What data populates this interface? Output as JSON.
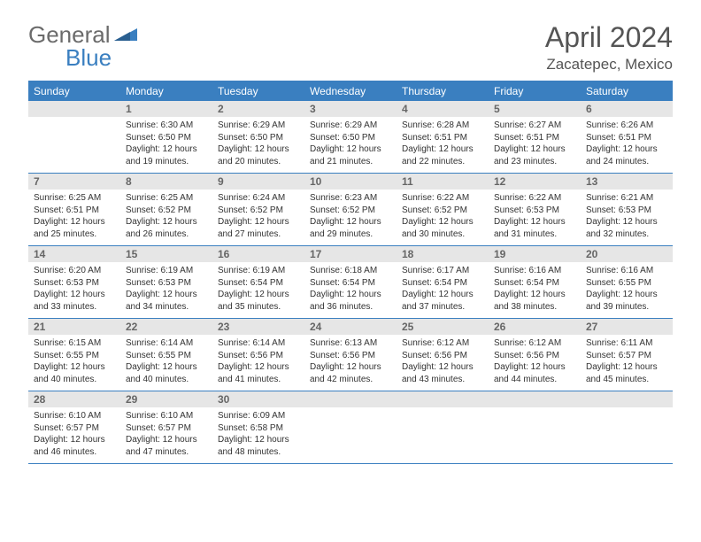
{
  "brand": {
    "general": "General",
    "blue": "Blue"
  },
  "title": "April 2024",
  "location": "Zacatepec, Mexico",
  "colors": {
    "accent": "#3a7fc0",
    "daynum_bg": "#e6e6e6",
    "text_dark": "#333333",
    "text_muted": "#666666",
    "title_color": "#555555",
    "background": "#ffffff"
  },
  "typography": {
    "title_fontsize": 32,
    "location_fontsize": 17,
    "weekday_fontsize": 12,
    "daynum_fontsize": 12,
    "details_fontsize": 10,
    "logo_fontsize": 26
  },
  "weekdays": [
    "Sunday",
    "Monday",
    "Tuesday",
    "Wednesday",
    "Thursday",
    "Friday",
    "Saturday"
  ],
  "weeks": [
    [
      {
        "num": "",
        "sunrise": "",
        "sunset": "",
        "daylight": ""
      },
      {
        "num": "1",
        "sunrise": "Sunrise: 6:30 AM",
        "sunset": "Sunset: 6:50 PM",
        "daylight": "Daylight: 12 hours and 19 minutes."
      },
      {
        "num": "2",
        "sunrise": "Sunrise: 6:29 AM",
        "sunset": "Sunset: 6:50 PM",
        "daylight": "Daylight: 12 hours and 20 minutes."
      },
      {
        "num": "3",
        "sunrise": "Sunrise: 6:29 AM",
        "sunset": "Sunset: 6:50 PM",
        "daylight": "Daylight: 12 hours and 21 minutes."
      },
      {
        "num": "4",
        "sunrise": "Sunrise: 6:28 AM",
        "sunset": "Sunset: 6:51 PM",
        "daylight": "Daylight: 12 hours and 22 minutes."
      },
      {
        "num": "5",
        "sunrise": "Sunrise: 6:27 AM",
        "sunset": "Sunset: 6:51 PM",
        "daylight": "Daylight: 12 hours and 23 minutes."
      },
      {
        "num": "6",
        "sunrise": "Sunrise: 6:26 AM",
        "sunset": "Sunset: 6:51 PM",
        "daylight": "Daylight: 12 hours and 24 minutes."
      }
    ],
    [
      {
        "num": "7",
        "sunrise": "Sunrise: 6:25 AM",
        "sunset": "Sunset: 6:51 PM",
        "daylight": "Daylight: 12 hours and 25 minutes."
      },
      {
        "num": "8",
        "sunrise": "Sunrise: 6:25 AM",
        "sunset": "Sunset: 6:52 PM",
        "daylight": "Daylight: 12 hours and 26 minutes."
      },
      {
        "num": "9",
        "sunrise": "Sunrise: 6:24 AM",
        "sunset": "Sunset: 6:52 PM",
        "daylight": "Daylight: 12 hours and 27 minutes."
      },
      {
        "num": "10",
        "sunrise": "Sunrise: 6:23 AM",
        "sunset": "Sunset: 6:52 PM",
        "daylight": "Daylight: 12 hours and 29 minutes."
      },
      {
        "num": "11",
        "sunrise": "Sunrise: 6:22 AM",
        "sunset": "Sunset: 6:52 PM",
        "daylight": "Daylight: 12 hours and 30 minutes."
      },
      {
        "num": "12",
        "sunrise": "Sunrise: 6:22 AM",
        "sunset": "Sunset: 6:53 PM",
        "daylight": "Daylight: 12 hours and 31 minutes."
      },
      {
        "num": "13",
        "sunrise": "Sunrise: 6:21 AM",
        "sunset": "Sunset: 6:53 PM",
        "daylight": "Daylight: 12 hours and 32 minutes."
      }
    ],
    [
      {
        "num": "14",
        "sunrise": "Sunrise: 6:20 AM",
        "sunset": "Sunset: 6:53 PM",
        "daylight": "Daylight: 12 hours and 33 minutes."
      },
      {
        "num": "15",
        "sunrise": "Sunrise: 6:19 AM",
        "sunset": "Sunset: 6:53 PM",
        "daylight": "Daylight: 12 hours and 34 minutes."
      },
      {
        "num": "16",
        "sunrise": "Sunrise: 6:19 AM",
        "sunset": "Sunset: 6:54 PM",
        "daylight": "Daylight: 12 hours and 35 minutes."
      },
      {
        "num": "17",
        "sunrise": "Sunrise: 6:18 AM",
        "sunset": "Sunset: 6:54 PM",
        "daylight": "Daylight: 12 hours and 36 minutes."
      },
      {
        "num": "18",
        "sunrise": "Sunrise: 6:17 AM",
        "sunset": "Sunset: 6:54 PM",
        "daylight": "Daylight: 12 hours and 37 minutes."
      },
      {
        "num": "19",
        "sunrise": "Sunrise: 6:16 AM",
        "sunset": "Sunset: 6:54 PM",
        "daylight": "Daylight: 12 hours and 38 minutes."
      },
      {
        "num": "20",
        "sunrise": "Sunrise: 6:16 AM",
        "sunset": "Sunset: 6:55 PM",
        "daylight": "Daylight: 12 hours and 39 minutes."
      }
    ],
    [
      {
        "num": "21",
        "sunrise": "Sunrise: 6:15 AM",
        "sunset": "Sunset: 6:55 PM",
        "daylight": "Daylight: 12 hours and 40 minutes."
      },
      {
        "num": "22",
        "sunrise": "Sunrise: 6:14 AM",
        "sunset": "Sunset: 6:55 PM",
        "daylight": "Daylight: 12 hours and 40 minutes."
      },
      {
        "num": "23",
        "sunrise": "Sunrise: 6:14 AM",
        "sunset": "Sunset: 6:56 PM",
        "daylight": "Daylight: 12 hours and 41 minutes."
      },
      {
        "num": "24",
        "sunrise": "Sunrise: 6:13 AM",
        "sunset": "Sunset: 6:56 PM",
        "daylight": "Daylight: 12 hours and 42 minutes."
      },
      {
        "num": "25",
        "sunrise": "Sunrise: 6:12 AM",
        "sunset": "Sunset: 6:56 PM",
        "daylight": "Daylight: 12 hours and 43 minutes."
      },
      {
        "num": "26",
        "sunrise": "Sunrise: 6:12 AM",
        "sunset": "Sunset: 6:56 PM",
        "daylight": "Daylight: 12 hours and 44 minutes."
      },
      {
        "num": "27",
        "sunrise": "Sunrise: 6:11 AM",
        "sunset": "Sunset: 6:57 PM",
        "daylight": "Daylight: 12 hours and 45 minutes."
      }
    ],
    [
      {
        "num": "28",
        "sunrise": "Sunrise: 6:10 AM",
        "sunset": "Sunset: 6:57 PM",
        "daylight": "Daylight: 12 hours and 46 minutes."
      },
      {
        "num": "29",
        "sunrise": "Sunrise: 6:10 AM",
        "sunset": "Sunset: 6:57 PM",
        "daylight": "Daylight: 12 hours and 47 minutes."
      },
      {
        "num": "30",
        "sunrise": "Sunrise: 6:09 AM",
        "sunset": "Sunset: 6:58 PM",
        "daylight": "Daylight: 12 hours and 48 minutes."
      },
      {
        "num": "",
        "sunrise": "",
        "sunset": "",
        "daylight": ""
      },
      {
        "num": "",
        "sunrise": "",
        "sunset": "",
        "daylight": ""
      },
      {
        "num": "",
        "sunrise": "",
        "sunset": "",
        "daylight": ""
      },
      {
        "num": "",
        "sunrise": "",
        "sunset": "",
        "daylight": ""
      }
    ]
  ]
}
